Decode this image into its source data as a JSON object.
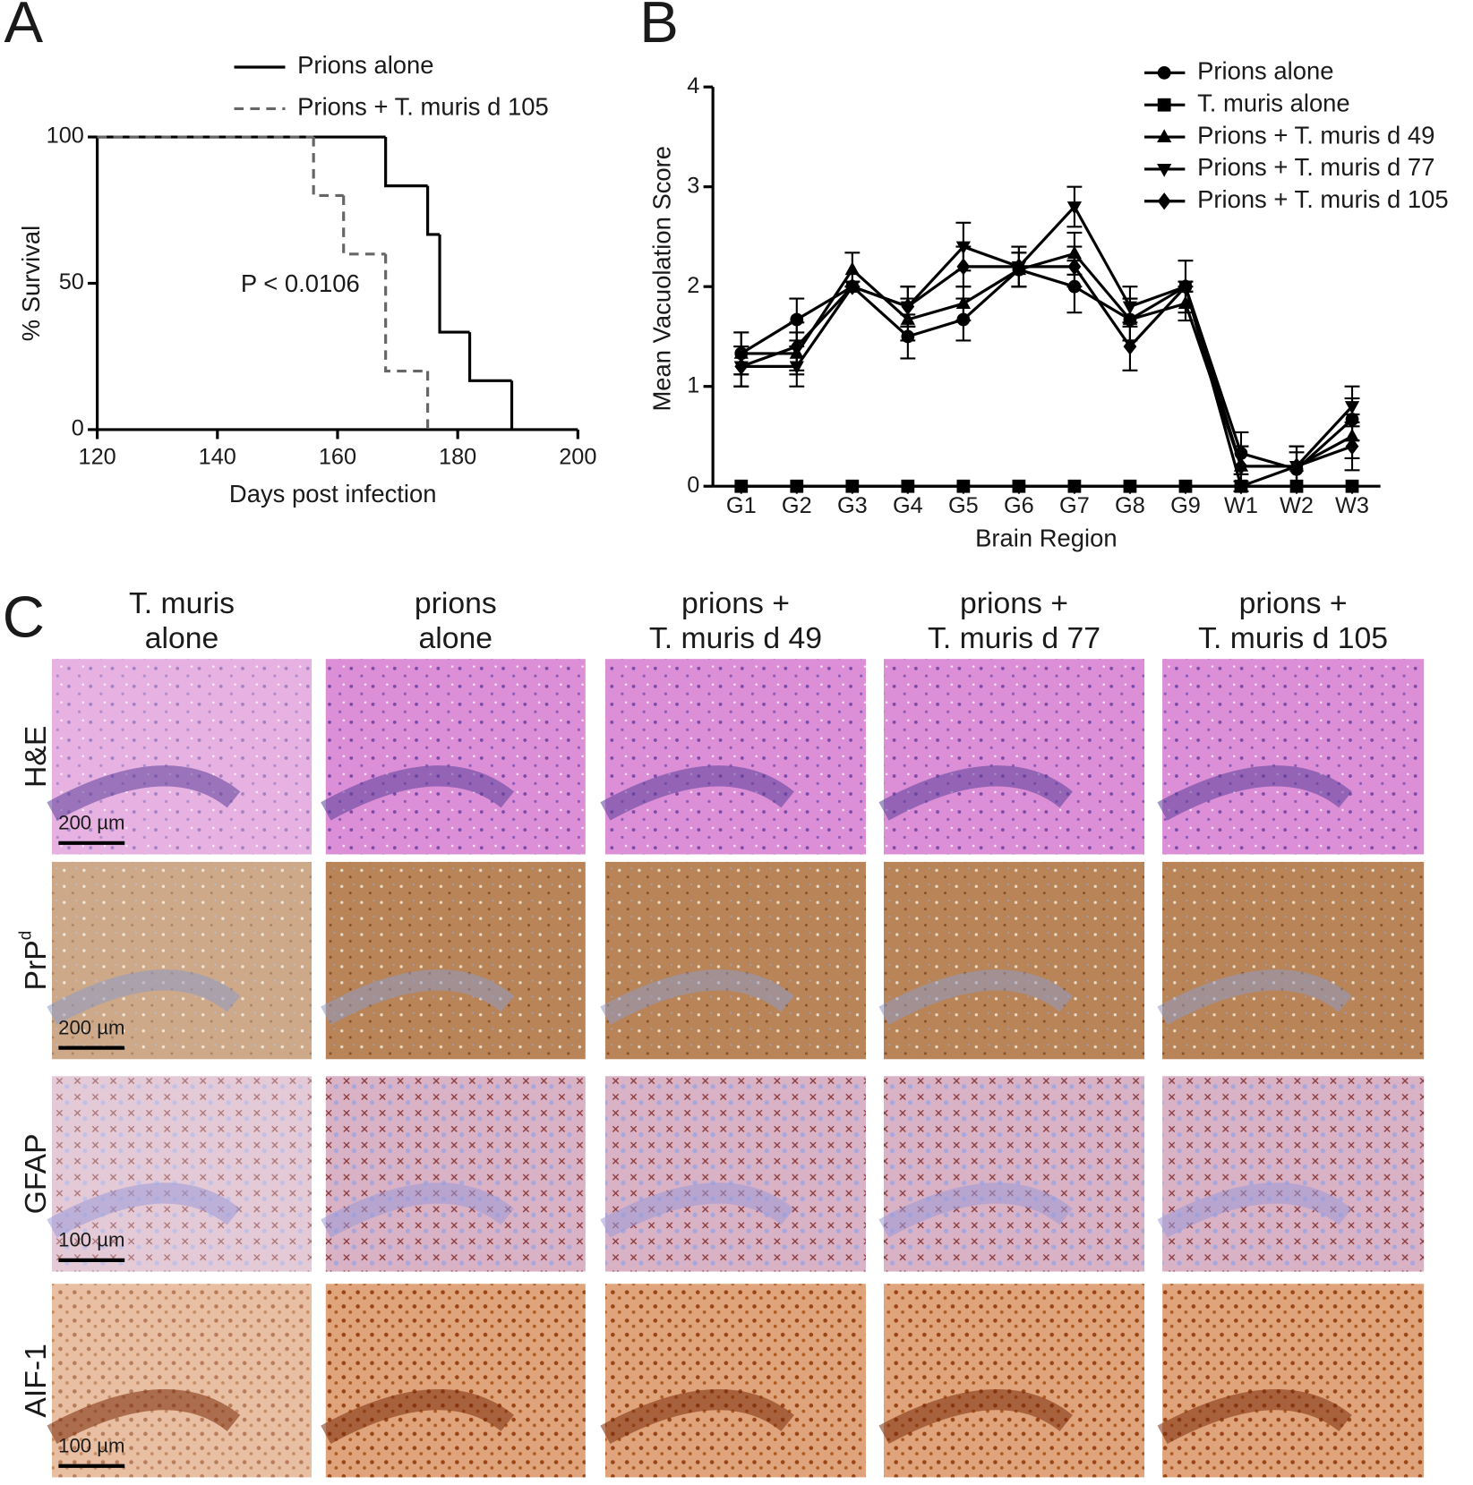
{
  "panel_labels": [
    "A",
    "B",
    "C"
  ],
  "chart_data": [
    {
      "type": "step",
      "x_label": "Days post infection",
      "y_label": "% Survival",
      "xlim": [
        120,
        200
      ],
      "xticks": [
        120,
        140,
        160,
        180,
        200
      ],
      "ylim": [
        0,
        100
      ],
      "yticks": [
        0,
        50,
        100
      ],
      "annotation": "P < 0.0106",
      "legend": "top",
      "series": [
        {
          "name": "Prions alone",
          "color": "#000000",
          "dash": "solid",
          "x": [
            120,
            168,
            175,
            177,
            182,
            189
          ],
          "values": [
            100,
            83.3,
            66.7,
            33.3,
            16.7,
            0
          ]
        },
        {
          "name": "Prions + T. muris d 105",
          "color": "#666666",
          "dash": "dashed",
          "x": [
            120,
            156,
            161,
            168,
            175
          ],
          "values": [
            100,
            80,
            60,
            20,
            0
          ]
        }
      ]
    },
    {
      "type": "line",
      "x_label": "Brain Region",
      "y_label": "Mean Vacuolation Score",
      "categories": [
        "G1",
        "G2",
        "G3",
        "G4",
        "G5",
        "G6",
        "G7",
        "G8",
        "G9",
        "W1",
        "W2",
        "W3"
      ],
      "ylim": [
        0,
        4
      ],
      "yticks": [
        0,
        1,
        2,
        3,
        4
      ],
      "legend": "upper right",
      "series": [
        {
          "name": "Prions alone",
          "color": "#000000",
          "marker": "circle",
          "values": [
            1.33,
            1.67,
            2.0,
            1.5,
            1.67,
            2.17,
            2.0,
            1.67,
            2.0,
            0.33,
            0.17,
            0.67
          ],
          "errors": [
            0.21,
            0.21,
            0.05,
            0.22,
            0.21,
            0.17,
            0.26,
            0.21,
            0.05,
            0.21,
            0.17,
            0.21
          ]
        },
        {
          "name": "T. muris alone",
          "color": "#000000",
          "marker": "square",
          "values": [
            0,
            0,
            0,
            0,
            0,
            0,
            0,
            0,
            0,
            0,
            0,
            0
          ]
        },
        {
          "name": "Prions + T. muris d 49",
          "color": "#000000",
          "marker": "triangle-up",
          "values": [
            1.33,
            1.33,
            2.17,
            1.67,
            1.83,
            2.17,
            2.33,
            1.67,
            1.83,
            0.2,
            0.2,
            0.5
          ],
          "errors": [
            0.21,
            0.21,
            0.17,
            0.21,
            0.17,
            0.17,
            0.21,
            0.21,
            0.17,
            0.2,
            0.2,
            0.22
          ]
        },
        {
          "name": "Prions + T. muris d 77",
          "color": "#000000",
          "marker": "triangle-down",
          "values": [
            1.2,
            1.2,
            2.0,
            1.8,
            2.4,
            2.2,
            2.8,
            1.8,
            2.0,
            0.0,
            0.2,
            0.8
          ],
          "errors": [
            0.2,
            0.2,
            0.05,
            0.2,
            0.24,
            0.2,
            0.2,
            0.2,
            0.26,
            0.05,
            0.2,
            0.2
          ]
        },
        {
          "name": "Prions + T. muris d 105",
          "color": "#000000",
          "marker": "diamond",
          "values": [
            1.2,
            1.4,
            2.0,
            1.8,
            2.2,
            2.2,
            2.2,
            1.4,
            2.0,
            0.2,
            0.2,
            0.4
          ],
          "errors": [
            0.2,
            0.24,
            0.05,
            0.2,
            0.2,
            0.2,
            0.2,
            0.24,
            0.05,
            0.2,
            0.2,
            0.24
          ]
        }
      ]
    }
  ],
  "panel_c": {
    "columns": [
      [
        "T. muris",
        "alone"
      ],
      [
        "prions",
        "alone"
      ],
      [
        "prions +",
        "T. muris d 49"
      ],
      [
        "prions +",
        "T. muris d 77"
      ],
      [
        "prions +",
        "T. muris d 105"
      ]
    ],
    "rows": [
      {
        "label": "H&E"
      },
      {
        "label": "PrP",
        "superscript": "d"
      },
      {
        "label": "GFAP"
      },
      {
        "label": "AIF-1"
      }
    ],
    "scale_bars": [
      "200 µm",
      "200 µm",
      "100 µm",
      "100 µm"
    ]
  }
}
